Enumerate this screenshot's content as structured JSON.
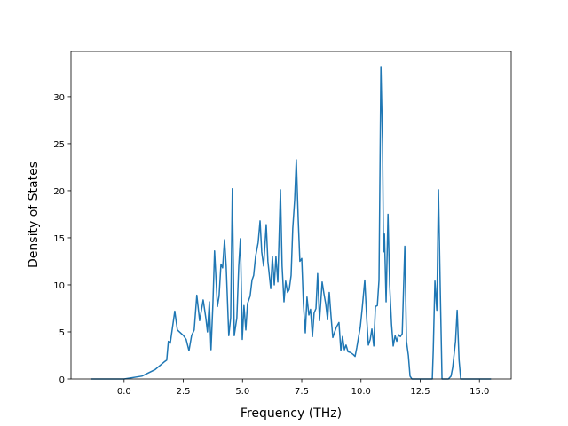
{
  "chart_data": {
    "type": "line",
    "xlabel": "Frequency (THz)",
    "ylabel": "Density of States",
    "color": "#1f77b4",
    "grid": false,
    "x": [
      -1.39,
      0.0,
      0.75,
      1.31,
      1.69,
      1.8,
      1.87,
      1.95,
      2.14,
      2.25,
      2.51,
      2.62,
      2.74,
      2.85,
      2.96,
      3.07,
      3.19,
      3.34,
      3.45,
      3.52,
      3.6,
      3.67,
      3.75,
      3.82,
      3.94,
      4.01,
      4.09,
      4.16,
      4.24,
      4.31,
      4.42,
      4.5,
      4.57,
      4.65,
      4.76,
      4.84,
      4.91,
      4.99,
      5.06,
      5.14,
      5.21,
      5.32,
      5.4,
      5.47,
      5.55,
      5.66,
      5.74,
      5.81,
      5.89,
      6.0,
      6.07,
      6.19,
      6.26,
      6.34,
      6.41,
      6.49,
      6.6,
      6.67,
      6.75,
      6.82,
      6.9,
      6.97,
      7.05,
      7.12,
      7.2,
      7.27,
      7.35,
      7.42,
      7.5,
      7.57,
      7.65,
      7.72,
      7.8,
      7.87,
      7.95,
      8.02,
      8.1,
      8.17,
      8.25,
      8.36,
      8.44,
      8.51,
      8.59,
      8.66,
      8.74,
      8.81,
      8.89,
      8.96,
      9.07,
      9.15,
      9.22,
      9.3,
      9.37,
      9.45,
      9.56,
      9.67,
      9.75,
      9.82,
      9.9,
      9.97,
      10.05,
      10.16,
      10.24,
      10.31,
      10.39,
      10.46,
      10.54,
      10.61,
      10.69,
      10.76,
      10.84,
      10.91,
      10.95,
      10.99,
      11.06,
      11.14,
      11.21,
      11.29,
      11.36,
      11.44,
      11.51,
      11.59,
      11.66,
      11.74,
      11.85,
      11.92,
      12.0,
      12.07,
      12.15,
      13.01,
      13.05,
      13.12,
      13.2,
      13.27,
      13.35,
      13.42,
      13.69,
      13.8,
      13.87,
      13.99,
      14.06,
      14.14,
      14.21,
      15.49
    ],
    "values": [
      0,
      0,
      0.3,
      1.0,
      1.8,
      2.0,
      4.0,
      3.8,
      7.2,
      5.2,
      4.6,
      4.2,
      3.0,
      4.6,
      5.2,
      8.9,
      6.2,
      8.4,
      6.5,
      5.0,
      8.2,
      3.1,
      8.0,
      13.6,
      7.7,
      8.8,
      12.2,
      11.8,
      14.8,
      12.0,
      4.6,
      6.5,
      20.2,
      4.6,
      6.5,
      12.0,
      14.9,
      4.2,
      7.8,
      5.2,
      8.0,
      8.8,
      10.5,
      11.0,
      13.0,
      14.5,
      16.8,
      13.5,
      12.0,
      16.4,
      12.5,
      9.6,
      13.0,
      10.0,
      13.0,
      10.3,
      20.1,
      12.0,
      8.2,
      10.4,
      9.2,
      9.5,
      11.0,
      16.0,
      19.0,
      23.3,
      17.0,
      12.5,
      12.8,
      8.0,
      4.9,
      8.7,
      6.8,
      7.4,
      4.5,
      7.0,
      7.5,
      11.2,
      6.2,
      10.3,
      9.0,
      8.0,
      6.3,
      9.2,
      6.5,
      4.4,
      5.0,
      5.5,
      6.0,
      3.0,
      4.5,
      3.1,
      3.6,
      2.9,
      2.8,
      2.6,
      2.4,
      3.3,
      4.5,
      5.5,
      7.5,
      10.5,
      6.5,
      3.6,
      4.2,
      5.3,
      3.5,
      7.7,
      7.8,
      10.5,
      33.2,
      25.0,
      13.5,
      15.4,
      8.2,
      17.5,
      10.0,
      5.8,
      3.5,
      4.6,
      4.0,
      4.7,
      4.5,
      4.8,
      14.1,
      4.0,
      2.5,
      0.3,
      0,
      0,
      3.0,
      10.4,
      7.3,
      20.1,
      9.0,
      0,
      0,
      0.3,
      1.2,
      4.0,
      7.3,
      2.0,
      0,
      0
    ],
    "xlim": [
      -2.24,
      16.34
    ],
    "ylim": [
      0,
      34.8
    ],
    "xticks": [
      {
        "value": 0,
        "label": "0.0"
      },
      2.5,
      {
        "value": 5,
        "label": "5.0"
      },
      7.5,
      {
        "value": 10,
        "label": "10.0"
      },
      12.5,
      {
        "value": 15,
        "label": "15.0"
      }
    ],
    "yticks": [
      0,
      5,
      10,
      15,
      20,
      25,
      30
    ]
  }
}
